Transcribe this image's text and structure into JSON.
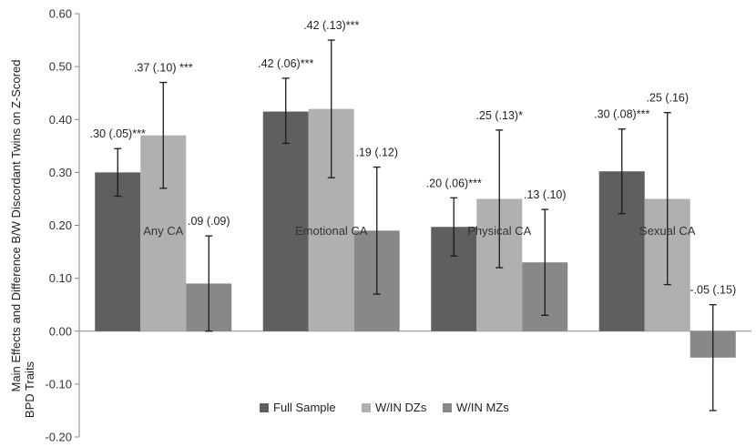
{
  "chart_data": {
    "type": "bar",
    "ylabel_lines": [
      "Main Effects and Difference B/W Discordant Twins on Z-Scored",
      "BPD Traits"
    ],
    "ylim": [
      -0.2,
      0.6
    ],
    "yticks": [
      "-0.20",
      "-0.10",
      "0.00",
      "0.10",
      "0.20",
      "0.30",
      "0.40",
      "0.50",
      "0.60"
    ],
    "grid": false,
    "legend_position": "bottom",
    "categories": [
      "Any CA",
      "Emotional CA",
      "Physical CA",
      "Sexual CA"
    ],
    "series": [
      {
        "name": "Full Sample",
        "color": "#5f5f5f",
        "values": [
          0.3,
          0.415,
          0.197,
          0.302
        ],
        "error_low": [
          0.255,
          0.355,
          0.142,
          0.222
        ],
        "error_high": [
          0.345,
          0.478,
          0.252,
          0.382
        ],
        "labels": [
          ".30 (.05)***",
          ".42 (.06)***",
          ".20 (.06)***",
          ".30 (.08)***"
        ]
      },
      {
        "name": "W/IN DZs",
        "color": "#b0b0b0",
        "values": [
          0.37,
          0.42,
          0.25,
          0.25
        ],
        "error_low": [
          0.27,
          0.29,
          0.12,
          0.088
        ],
        "error_high": [
          0.47,
          0.55,
          0.38,
          0.413
        ],
        "labels": [
          ".37 (.10) ***",
          ".42 (.13)***",
          ".25 (.13)*",
          ".25 (.16)"
        ]
      },
      {
        "name": "W/IN MZs",
        "color": "#888888",
        "values": [
          0.09,
          0.19,
          0.13,
          -0.05
        ],
        "error_low": [
          0.0,
          0.07,
          0.03,
          -0.15
        ],
        "error_high": [
          0.18,
          0.31,
          0.23,
          0.05
        ],
        "labels": [
          ".09 (.09)",
          ".19 (.12)",
          ".13 (.10)",
          "-.05 (.15)"
        ]
      }
    ]
  }
}
